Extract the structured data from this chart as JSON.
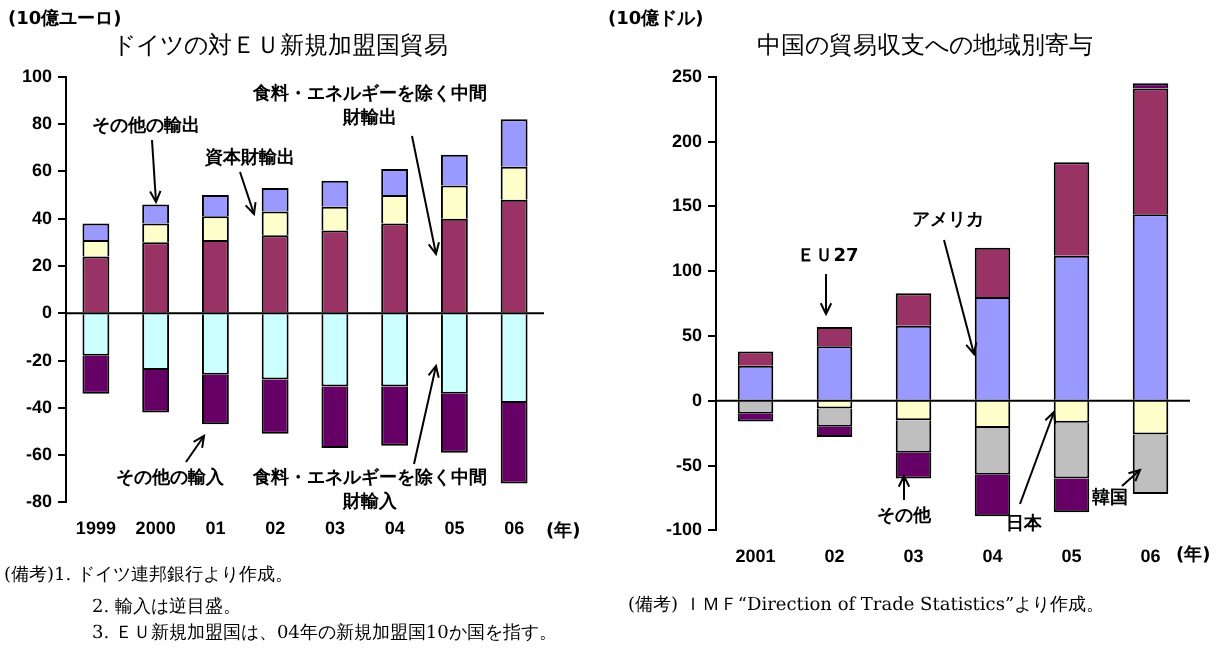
{
  "chart_data": [
    {
      "type": "bar",
      "stacked": true,
      "title": "ドイツの対ＥＵ新規加盟国貿易",
      "ylabel": "(10億ユーロ)",
      "xlabel": "(年)",
      "categories": [
        "1999",
        "2000",
        "01",
        "02",
        "03",
        "04",
        "05",
        "06"
      ],
      "series": [
        {
          "name": "食料・エネルギーを除く中間財輸出",
          "color": "#993366",
          "values": [
            24,
            30,
            31,
            33,
            35,
            38,
            40,
            48
          ]
        },
        {
          "name": "資本財輸出",
          "color": "#ffffcc",
          "values": [
            7,
            8,
            10,
            10,
            10,
            12,
            14,
            14
          ]
        },
        {
          "name": "その他の輸出",
          "color": "#9999ff",
          "values": [
            7,
            8,
            9,
            10,
            11,
            11,
            13,
            20
          ]
        },
        {
          "name": "食料・エネルギーを除く中間財輸入",
          "color": "#ccffff",
          "values": [
            -18,
            -24,
            -26,
            -28,
            -31,
            -31,
            -34,
            -38
          ]
        },
        {
          "name": "その他の輸入",
          "color": "#660066",
          "values": [
            -16,
            -18,
            -21,
            -23,
            -26,
            -25,
            -25,
            -34
          ]
        }
      ],
      "ylim": [
        -80,
        100
      ],
      "yticks": [
        -80,
        -60,
        -40,
        -20,
        0,
        20,
        40,
        60,
        80,
        100
      ],
      "annotations": [
        "(備考)1. ドイツ連邦銀行より作成。",
        "2. 輸入は逆目盛。",
        "3. ＥＵ新規加盟国は、04年の新規加盟国10か国を指す。"
      ]
    },
    {
      "type": "bar",
      "stacked": true,
      "title": "中国の貿易収支への地域別寄与",
      "ylabel": "(10億ドル)",
      "xlabel": "(年)",
      "categories": [
        "2001",
        "02",
        "03",
        "04",
        "05",
        "06"
      ],
      "series": [
        {
          "name": "アメリカ",
          "color": "#9999ff",
          "values": [
            27,
            42,
            58,
            80,
            112,
            144
          ]
        },
        {
          "name": "ＥＵ27",
          "color": "#993366",
          "values": [
            11,
            15,
            25,
            38,
            72,
            97
          ]
        },
        {
          "name": "日本",
          "color": "#ffffcc",
          "values": [
            null,
            -6,
            -15,
            -21,
            -17,
            -26
          ]
        },
        {
          "name": "韓国",
          "color": "#bfbfbf",
          "values": [
            -10,
            -14,
            -25,
            -36,
            -43,
            -46
          ]
        },
        {
          "name": "その他",
          "color": "#660066",
          "values": [
            -6,
            -8,
            -20,
            -32,
            -26,
            4
          ]
        }
      ],
      "ylim": [
        -100,
        250
      ],
      "yticks": [
        -100,
        -50,
        0,
        50,
        100,
        150,
        200,
        250
      ],
      "annotations": [
        "(備考) ＩＭＦ“Direction of Trade Statistics”より作成。"
      ]
    }
  ]
}
